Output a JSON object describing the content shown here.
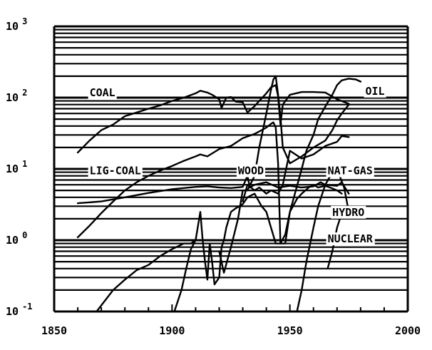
{
  "chart_data": {
    "type": "line",
    "title": "",
    "xlabel": "",
    "ylabel": "",
    "xlim": [
      1850,
      2000
    ],
    "ylim": [
      0.1,
      1000
    ],
    "y_scale": "log",
    "grid": "horizontal minor log gridlines",
    "legend": "none; series labeled directly on plot",
    "x_ticks": [
      {
        "value": 1850,
        "label": "1850"
      },
      {
        "value": 1900,
        "label": "1900"
      },
      {
        "value": 1950,
        "label": "1950"
      },
      {
        "value": 2000,
        "label": "2000"
      }
    ],
    "y_ticks": [
      {
        "value": 1000,
        "base": "10",
        "exp": "3"
      },
      {
        "value": 100,
        "base": "10",
        "exp": "2"
      },
      {
        "value": 10,
        "base": "10",
        "exp": "1"
      },
      {
        "value": 1,
        "base": "10",
        "exp": "0"
      },
      {
        "value": 0.1,
        "base": "10",
        "exp": "-1"
      }
    ],
    "series": [
      {
        "name": "COAL",
        "label_at": [
          1865,
          105
        ],
        "points": [
          [
            1860,
            17
          ],
          [
            1865,
            25
          ],
          [
            1870,
            35
          ],
          [
            1875,
            42
          ],
          [
            1880,
            55
          ],
          [
            1885,
            62
          ],
          [
            1890,
            70
          ],
          [
            1895,
            78
          ],
          [
            1900,
            90
          ],
          [
            1905,
            100
          ],
          [
            1910,
            115
          ],
          [
            1912,
            125
          ],
          [
            1915,
            118
          ],
          [
            1917,
            110
          ],
          [
            1920,
            95
          ],
          [
            1921,
            72
          ],
          [
            1923,
            100
          ],
          [
            1925,
            102
          ],
          [
            1927,
            88
          ],
          [
            1930,
            86
          ],
          [
            1932,
            62
          ],
          [
            1935,
            76
          ],
          [
            1937,
            90
          ],
          [
            1940,
            115
          ],
          [
            1942,
            140
          ],
          [
            1944,
            150
          ],
          [
            1945,
            105
          ],
          [
            1946,
            42
          ],
          [
            1947,
            80
          ],
          [
            1950,
            110
          ],
          [
            1955,
            120
          ],
          [
            1960,
            120
          ],
          [
            1965,
            118
          ],
          [
            1970,
            95
          ],
          [
            1975,
            82
          ]
        ]
      },
      {
        "name": "OIL",
        "label_at": [
          1982,
          110
        ],
        "points": [
          [
            1920,
            0.7
          ],
          [
            1922,
            0.35
          ],
          [
            1925,
            0.8
          ],
          [
            1928,
            2
          ],
          [
            1930,
            5
          ],
          [
            1932,
            5
          ],
          [
            1935,
            8
          ],
          [
            1937,
            20
          ],
          [
            1940,
            60
          ],
          [
            1942,
            130
          ],
          [
            1943,
            180
          ],
          [
            1944,
            200
          ],
          [
            1945,
            110
          ],
          [
            1946,
            55
          ],
          [
            1947,
            20
          ],
          [
            1950,
            12
          ],
          [
            1955,
            15
          ],
          [
            1960,
            20
          ],
          [
            1965,
            25
          ],
          [
            1968,
            35
          ],
          [
            1970,
            48
          ],
          [
            1972,
            60
          ],
          [
            1975,
            80
          ]
        ]
      },
      {
        "name": "LIG-COAL",
        "label_at": [
          1865,
          8.4
        ],
        "points": [
          [
            1860,
            1.1
          ],
          [
            1865,
            1.6
          ],
          [
            1870,
            2.4
          ],
          [
            1875,
            3.5
          ],
          [
            1880,
            5
          ],
          [
            1885,
            6.5
          ],
          [
            1890,
            8
          ],
          [
            1895,
            9.5
          ],
          [
            1900,
            11
          ],
          [
            1905,
            13
          ],
          [
            1910,
            15
          ],
          [
            1912,
            16
          ],
          [
            1915,
            15
          ],
          [
            1920,
            19
          ],
          [
            1925,
            21
          ],
          [
            1930,
            27
          ],
          [
            1935,
            31
          ],
          [
            1940,
            38
          ],
          [
            1942,
            43
          ],
          [
            1943,
            45
          ],
          [
            1944,
            38
          ],
          [
            1945,
            12
          ],
          [
            1946,
            0.9
          ],
          [
            1948,
            0.9
          ],
          [
            1950,
            2.5
          ],
          [
            1955,
            10
          ],
          [
            1957,
            18
          ],
          [
            1960,
            30
          ],
          [
            1962,
            50
          ],
          [
            1965,
            75
          ],
          [
            1968,
            110
          ],
          [
            1970,
            150
          ],
          [
            1972,
            175
          ],
          [
            1975,
            185
          ],
          [
            1978,
            180
          ],
          [
            1980,
            168
          ]
        ]
      },
      {
        "name": "WOOD",
        "label_at": [
          1928,
          8.4
        ],
        "points": [
          [
            1860,
            3.3
          ],
          [
            1870,
            3.5
          ],
          [
            1880,
            4
          ],
          [
            1890,
            4.6
          ],
          [
            1900,
            5.2
          ],
          [
            1910,
            5.6
          ],
          [
            1915,
            5.7
          ],
          [
            1920,
            5.5
          ],
          [
            1925,
            5.4
          ],
          [
            1930,
            5.6
          ],
          [
            1932,
            8
          ],
          [
            1933,
            5.5
          ],
          [
            1935,
            6
          ],
          [
            1940,
            6.5
          ],
          [
            1945,
            5.5
          ],
          [
            1950,
            5.8
          ],
          [
            1955,
            5.5
          ],
          [
            1960,
            5.7
          ],
          [
            1963,
            6.5
          ],
          [
            1965,
            6
          ],
          [
            1970,
            5.8
          ],
          [
            1972,
            6.5
          ],
          [
            1975,
            4.5
          ]
        ]
      },
      {
        "name": "NAT-GAS",
        "label_at": [
          1966,
          8.4
        ],
        "points": [
          [
            1930,
            3.5
          ],
          [
            1932,
            6
          ],
          [
            1935,
            5
          ],
          [
            1937,
            5.5
          ],
          [
            1940,
            4.5
          ],
          [
            1942,
            5
          ],
          [
            1945,
            4.5
          ],
          [
            1947,
            6
          ],
          [
            1950,
            18
          ],
          [
            1955,
            14
          ],
          [
            1960,
            16
          ],
          [
            1965,
            21
          ],
          [
            1970,
            24
          ],
          [
            1972,
            29
          ],
          [
            1975,
            28
          ]
        ]
      },
      {
        "name": "HYDRO",
        "label_at": [
          1968,
          2.2
        ],
        "points": [
          [
            1868,
            0.1
          ],
          [
            1875,
            0.2
          ],
          [
            1880,
            0.28
          ],
          [
            1885,
            0.38
          ],
          [
            1890,
            0.45
          ],
          [
            1895,
            0.6
          ],
          [
            1900,
            0.75
          ],
          [
            1905,
            0.9
          ],
          [
            1908,
            0.9
          ],
          [
            1910,
            1
          ],
          [
            1912,
            2.5
          ],
          [
            1913,
            1
          ],
          [
            1914,
            0.5
          ],
          [
            1915,
            0.28
          ],
          [
            1916,
            0.9
          ],
          [
            1917,
            0.5
          ],
          [
            1918,
            0.24
          ],
          [
            1920,
            0.3
          ],
          [
            1921,
            0.8
          ],
          [
            1922,
            1
          ],
          [
            1923,
            1.5
          ],
          [
            1925,
            2.5
          ],
          [
            1927,
            2.8
          ],
          [
            1930,
            3.2
          ],
          [
            1932,
            4
          ],
          [
            1935,
            4.5
          ],
          [
            1938,
            3
          ],
          [
            1940,
            2.5
          ],
          [
            1942,
            1.5
          ],
          [
            1944,
            0.9
          ],
          [
            1946,
            0.9
          ],
          [
            1948,
            1.2
          ],
          [
            1950,
            2.5
          ],
          [
            1953,
            3.8
          ],
          [
            1955,
            4.5
          ],
          [
            1958,
            5.5
          ],
          [
            1960,
            6
          ],
          [
            1962,
            5.5
          ],
          [
            1965,
            5.8
          ],
          [
            1967,
            5.5
          ],
          [
            1970,
            5
          ],
          [
            1972,
            4.5
          ]
        ]
      },
      {
        "name": "NUCLEAR",
        "label_at": [
          1966,
          0.93
        ],
        "points": [
          [
            1953,
            0.1
          ],
          [
            1955,
            0.2
          ],
          [
            1957,
            0.5
          ],
          [
            1960,
            1.5
          ],
          [
            1962,
            3
          ],
          [
            1965,
            6
          ],
          [
            1968,
            9
          ],
          [
            1970,
            10
          ],
          [
            1973,
            5.5
          ],
          [
            1975,
            2.5
          ]
        ]
      },
      {
        "name": "",
        "points": [
          [
            1901,
            0.1
          ],
          [
            1904,
            0.2
          ],
          [
            1906,
            0.4
          ],
          [
            1908,
            0.75
          ],
          [
            1910,
            1
          ]
        ]
      },
      {
        "name": "",
        "points": [
          [
            1966,
            0.4
          ],
          [
            1968,
            0.7
          ],
          [
            1970,
            1.5
          ],
          [
            1972,
            2.4
          ]
        ]
      }
    ]
  }
}
